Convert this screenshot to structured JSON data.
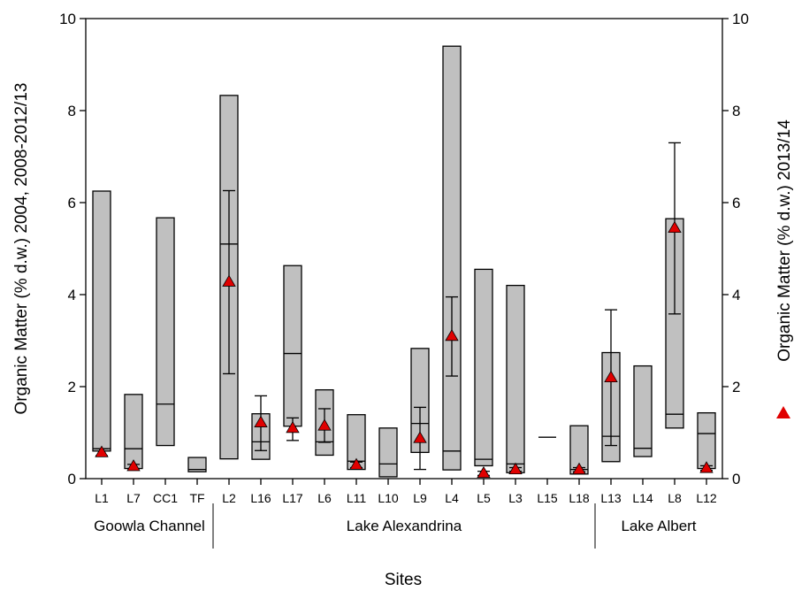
{
  "chart_data": {
    "type": "box",
    "xlabel": "Sites",
    "ylabel_left": "Organic Matter (% d.w.) 2004, 2008-2012/13",
    "ylabel_right": "Organic Matter (% d.w.) 2013/14",
    "ylim": [
      0,
      10
    ],
    "yticks": [
      0,
      2,
      4,
      6,
      8,
      10
    ],
    "categories": [
      "L1",
      "L7",
      "CC1",
      "TF",
      "L2",
      "L16",
      "L17",
      "L6",
      "L11",
      "L10",
      "L9",
      "L4",
      "L5",
      "L3",
      "L15",
      "L18",
      "L13",
      "L14",
      "L8",
      "L12"
    ],
    "groups": [
      {
        "name": "Goowla Channel",
        "categories": [
          "L1",
          "L7",
          "CC1",
          "TF"
        ]
      },
      {
        "name": "Lake Alexandrina",
        "categories": [
          "L2",
          "L16",
          "L17",
          "L6",
          "L11",
          "L10",
          "L9",
          "L4",
          "L5",
          "L3",
          "L15",
          "L18"
        ]
      },
      {
        "name": "Lake Albert",
        "categories": [
          "L13",
          "L14",
          "L8",
          "L12"
        ]
      }
    ],
    "series": [
      {
        "kind": "range-box",
        "fill": "#c0c0c0",
        "boxes": [
          {
            "site": "L1",
            "min": 0.6,
            "max": 6.25,
            "median": 0.65
          },
          {
            "site": "L7",
            "min": 0.22,
            "max": 1.83,
            "median": 0.65
          },
          {
            "site": "CC1",
            "min": 0.72,
            "max": 5.67,
            "median": 1.62
          },
          {
            "site": "TF",
            "min": 0.15,
            "max": 0.46,
            "median": 0.2
          },
          {
            "site": "L2",
            "min": 0.43,
            "max": 8.33,
            "median": 5.1
          },
          {
            "site": "L16",
            "min": 0.42,
            "max": 1.41,
            "median": 0.8
          },
          {
            "site": "L17",
            "min": 1.14,
            "max": 4.63,
            "median": 2.72
          },
          {
            "site": "L6",
            "min": 0.51,
            "max": 1.93,
            "median": 0.8
          },
          {
            "site": "L11",
            "min": 0.2,
            "max": 1.39,
            "median": 0.38
          },
          {
            "site": "L10",
            "min": 0.04,
            "max": 1.1,
            "median": 0.32
          },
          {
            "site": "L9",
            "min": 0.57,
            "max": 2.83,
            "median": 1.2
          },
          {
            "site": "L4",
            "min": 0.19,
            "max": 9.4,
            "median": 0.6
          },
          {
            "site": "L5",
            "min": 0.28,
            "max": 4.55,
            "median": 0.42
          },
          {
            "site": "L3",
            "min": 0.13,
            "max": 4.2,
            "median": 0.32
          },
          {
            "site": "L15",
            "min": 0.9,
            "max": 0.9,
            "median": 0.9
          },
          {
            "site": "L18",
            "min": 0.1,
            "max": 1.15,
            "median": 0.2
          },
          {
            "site": "L13",
            "min": 0.37,
            "max": 2.74,
            "median": 0.92
          },
          {
            "site": "L14",
            "min": 0.48,
            "max": 2.45,
            "median": 0.66
          },
          {
            "site": "L8",
            "min": 1.1,
            "max": 5.65,
            "median": 1.4
          },
          {
            "site": "L12",
            "min": 0.22,
            "max": 1.43,
            "median": 0.98
          }
        ]
      },
      {
        "kind": "mean-with-error",
        "color": "#e00000",
        "points": [
          {
            "site": "L1",
            "value": 0.57,
            "low": 0.5,
            "high": 0.65
          },
          {
            "site": "L7",
            "value": 0.27,
            "low": 0.22,
            "high": 0.31
          },
          {
            "site": "L2",
            "value": 4.28,
            "low": 2.28,
            "high": 6.26
          },
          {
            "site": "L16",
            "value": 1.22,
            "low": 0.61,
            "high": 1.8
          },
          {
            "site": "L17",
            "value": 1.1,
            "low": 0.83,
            "high": 1.32
          },
          {
            "site": "L6",
            "value": 1.15,
            "low": 0.79,
            "high": 1.52
          },
          {
            "site": "L11",
            "value": 0.3,
            "low": 0.24,
            "high": 0.36
          },
          {
            "site": "L9",
            "value": 0.88,
            "low": 0.2,
            "high": 1.55
          },
          {
            "site": "L4",
            "value": 3.1,
            "low": 2.23,
            "high": 3.95
          },
          {
            "site": "L5",
            "value": 0.12,
            "low": 0.07,
            "high": 0.16
          },
          {
            "site": "L3",
            "value": 0.2,
            "low": 0.16,
            "high": 0.24
          },
          {
            "site": "L18",
            "value": 0.2,
            "low": 0.15,
            "high": 0.24
          },
          {
            "site": "L13",
            "value": 2.2,
            "low": 0.72,
            "high": 3.67
          },
          {
            "site": "L8",
            "value": 5.45,
            "low": 3.58,
            "high": 7.3
          },
          {
            "site": "L12",
            "value": 0.23,
            "low": 0.18,
            "high": 0.28
          }
        ]
      }
    ]
  }
}
